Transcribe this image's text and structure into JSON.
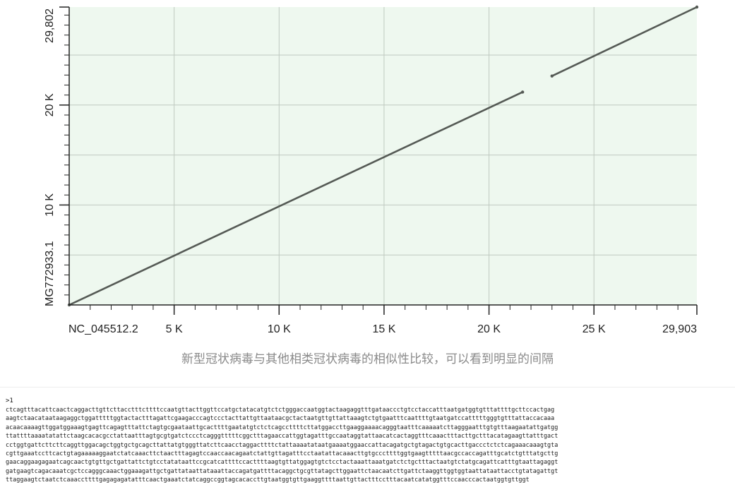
{
  "chart_data": {
    "type": "scatter",
    "title": "",
    "xlabel": "NC_045512.2",
    "ylabel": "MG772933.1",
    "xlim": [
      0,
      29903
    ],
    "ylim": [
      0,
      29802
    ],
    "x_major_ticks": [
      {
        "value": 5000,
        "label": "5 K"
      },
      {
        "value": 10000,
        "label": "10 K"
      },
      {
        "value": 15000,
        "label": "15 K"
      },
      {
        "value": 20000,
        "label": "20 K"
      },
      {
        "value": 25000,
        "label": "25 K"
      },
      {
        "value": 29903,
        "label": "29,903"
      }
    ],
    "y_major_ticks": [
      {
        "value": 10000,
        "label": "10 K"
      },
      {
        "value": 20000,
        "label": "20 K"
      },
      {
        "value": 29802,
        "label": "29,802"
      }
    ],
    "minor_tick_step": 1000,
    "grid": true,
    "series": [
      {
        "values": [
          [
            0,
            0
          ],
          [
            21600,
            21300
          ]
        ]
      },
      {
        "values": [
          [
            23000,
            22900
          ],
          [
            29903,
            29802
          ]
        ]
      }
    ],
    "colors": {
      "plot_background": "#eef8ef",
      "grid": "#bfc9c0",
      "line": "#555a55",
      "axis": "#222222"
    }
  },
  "caption": "新型冠状病毒与其他相类冠状病毒的相似性比较，可以看到明显的间隔",
  "sequence": {
    "header": ">1",
    "lines": [
      "ctcagtttacattcaactcaggacttgttcttacctttcttttccaatgttacttggttccatgctatacatgtctctgggaccaatggtactaagaggtttgataaccctgtcctaccatttaatgatggtgtttattttgcttccactgag",
      "aagtctaacataataagaggctggatttttggtactactttagattcgaagacccagtccctacttattgttaataacgctactaatgttgttattaaagtctgtgaatttcaattttgtaatgatccatttttgggtgtttattaccacaaa",
      "acaacaaaagttggatggaaagtgagttcagagtttattctagtgcgaataattgcacttttgaatatgtctctcagccttttcttatggaccttgaaggaaaacagggtaatttcaaaaatcttagggaatttgtgtttaagaatattgatgg",
      "ttattttaaaatatattctaagcacacgcctattaatttagtgcgtgatctccctcagggtttttcggctttagaaccattggtagatttgccaataggtattaacatcactaggtttcaaactttacttgctttacatagaagttatttgact",
      "cctggtgattcttcttcaggttggacagctggtgctgcagcttattatgtgggttatcttcaacctaggacttttctattaaaatataatgaaaatggaaccattacagatgctgtagactgtgcacttgaccctctctcagaaacaaagtgta",
      "cgttgaaatccttcactgtagaaaaaggaatctatcaaacttctaactttagagtccaaccaacagaatctattgttagatttcctaatattacaaacttgtgcccttttggtgaagtttttaacgccaccagatttgcatctgtttatgcttg",
      "gaacaggaagagaatcagcaactgtgttgctgattattctgtcctatataattccgcatcattttccacttttaagtgttatggagtgtctcctactaaattaaatgatctctgctttactaatgtctatgcagattcatttgtaattagaggt",
      "gatgaagtcagacaaatcgctccagggcaaactggaaagattgctgattataattataaattaccagatgattttacaggctgcgttatagcttggaattctaacaatcttgattctaaggttggtggtaattataattacctgtatagattgt",
      "ttaggaagtctaatctcaaaccttttgagagagatatttcaactgaaatctatcaggccggtagcacaccttgtaatggtgttgaaggttttaattgttactttcctttacaatcatatggtttccaacccactaatggtgttggt"
    ]
  }
}
